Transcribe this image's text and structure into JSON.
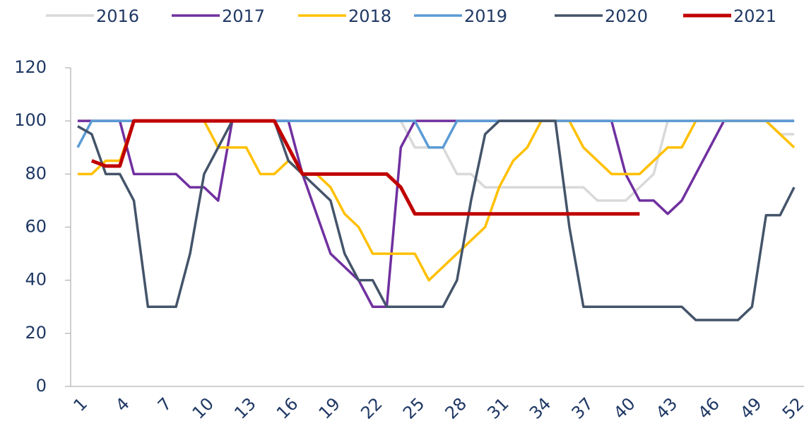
{
  "chart_data": {
    "type": "line",
    "x": [
      1,
      2,
      3,
      4,
      5,
      6,
      7,
      8,
      9,
      10,
      11,
      12,
      13,
      14,
      15,
      16,
      17,
      18,
      19,
      20,
      21,
      22,
      23,
      24,
      25,
      26,
      27,
      28,
      29,
      30,
      31,
      32,
      33,
      34,
      35,
      36,
      37,
      38,
      39,
      40,
      41,
      42,
      43,
      44,
      45,
      46,
      47,
      48,
      49,
      50,
      51,
      52
    ],
    "xlim": [
      0.5,
      52.7
    ],
    "xticks": [
      1,
      4,
      7,
      10,
      13,
      16,
      19,
      22,
      25,
      28,
      31,
      34,
      37,
      40,
      43,
      46,
      49,
      52
    ],
    "ylim": [
      0,
      120
    ],
    "yticks": [
      0,
      20,
      40,
      60,
      80,
      100,
      120
    ],
    "legend": "top",
    "series": [
      {
        "name": "2016",
        "color": "#d9d9d9",
        "values": [
          100,
          100,
          100,
          100,
          100,
          100,
          100,
          100,
          100,
          100,
          100,
          100,
          100,
          100,
          100,
          100,
          100,
          100,
          100,
          100,
          100,
          100,
          100,
          100,
          90,
          90,
          90,
          80,
          80,
          75,
          75,
          75,
          75,
          75,
          75,
          75,
          75,
          70,
          70,
          70,
          75,
          80,
          100,
          100,
          100,
          100,
          100,
          100,
          100,
          100,
          95,
          95
        ]
      },
      {
        "name": "2017",
        "color": "#7030a0",
        "values": [
          100,
          100,
          100,
          100,
          80,
          80,
          80,
          80,
          75,
          75,
          70,
          100,
          100,
          100,
          100,
          100,
          80,
          65,
          50,
          45,
          40,
          30,
          30,
          90,
          100,
          100,
          100,
          100,
          100,
          100,
          100,
          100,
          100,
          100,
          100,
          100,
          100,
          100,
          100,
          80,
          70,
          70,
          65,
          70,
          80,
          90,
          100,
          100,
          100,
          100,
          100,
          100
        ]
      },
      {
        "name": "2018",
        "color": "#ffc000",
        "values": [
          80,
          80,
          85,
          85,
          100,
          100,
          100,
          100,
          100,
          100,
          90,
          90,
          90,
          80,
          80,
          85,
          80,
          80,
          75,
          65,
          60,
          50,
          50,
          50,
          50,
          40,
          45,
          50,
          55,
          60,
          75,
          85,
          90,
          100,
          100,
          100,
          90,
          85,
          80,
          80,
          80,
          85,
          90,
          90,
          100,
          100,
          100,
          100,
          100,
          100,
          95,
          90
        ]
      },
      {
        "name": "2019",
        "color": "#5b9bd5",
        "values": [
          90,
          100,
          100,
          100,
          100,
          100,
          100,
          100,
          100,
          100,
          100,
          100,
          100,
          100,
          100,
          100,
          100,
          100,
          100,
          100,
          100,
          100,
          100,
          100,
          100,
          90,
          90,
          100,
          100,
          100,
          100,
          100,
          100,
          100,
          100,
          100,
          100,
          100,
          100,
          100,
          100,
          100,
          100,
          100,
          100,
          100,
          100,
          100,
          100,
          100,
          100,
          100
        ]
      },
      {
        "name": "2020",
        "color": "#44546a",
        "values": [
          98,
          95,
          80,
          80,
          70,
          30,
          30,
          30,
          50,
          80,
          90,
          100,
          100,
          100,
          100,
          85,
          80,
          75,
          70,
          50,
          40,
          40,
          30,
          30,
          30,
          30,
          30,
          40,
          70,
          95,
          100,
          100,
          100,
          100,
          100,
          60,
          30,
          30,
          30,
          30,
          30,
          30,
          30,
          30,
          25,
          25,
          25,
          25,
          30,
          64.5,
          64.5,
          75
        ]
      },
      {
        "name": "2021",
        "color": "#c00000",
        "values": [
          null,
          85,
          83,
          83,
          100,
          100,
          100,
          100,
          100,
          100,
          100,
          100,
          100,
          100,
          100,
          90,
          80,
          80,
          80,
          80,
          80,
          80,
          80,
          75,
          65,
          65,
          65,
          65,
          65,
          65,
          65,
          65,
          65,
          65,
          65,
          65,
          65,
          65,
          65,
          65,
          65,
          null,
          null,
          null,
          null,
          null,
          null,
          null,
          null,
          null,
          null,
          null
        ]
      }
    ]
  }
}
